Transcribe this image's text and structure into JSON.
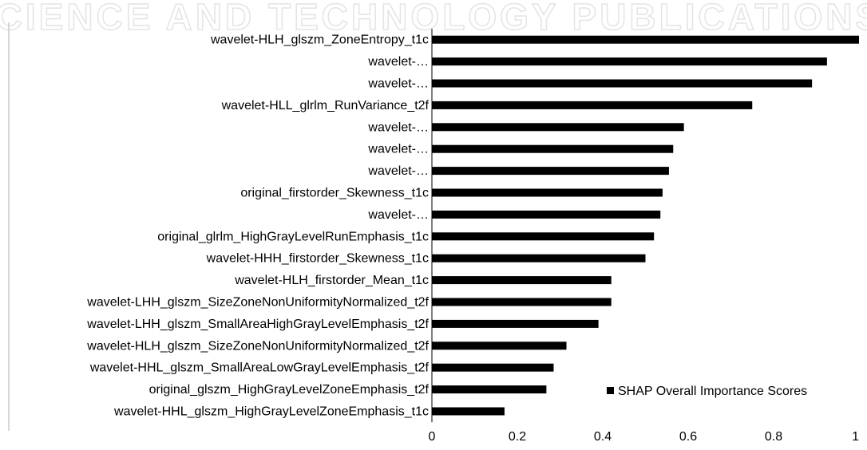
{
  "watermark": {
    "text": "SCIENCE AND TECHNOLOGY PUBLICATIONS"
  },
  "chart_data": {
    "type": "bar",
    "orientation": "horizontal",
    "categories": [
      "wavelet-HLH_glszm_ZoneEntropy_t1c",
      "wavelet-…",
      "wavelet-…",
      "wavelet-HLL_glrlm_RunVariance_t2f",
      "wavelet-…",
      "wavelet-…",
      "wavelet-…",
      "original_firstorder_Skewness_t1c",
      "wavelet-…",
      "original_glrlm_HighGrayLevelRunEmphasis_t1c",
      "wavelet-HHH_firstorder_Skewness_t1c",
      "wavelet-HLH_firstorder_Mean_t1c",
      "wavelet-LHH_glszm_SizeZoneNonUniformityNormalized_t2f",
      "wavelet-LHH_glszm_SmallAreaHighGrayLevelEmphasis_t2f",
      "wavelet-HLH_glszm_SizeZoneNonUniformityNormalized_t2f",
      "wavelet-HHL_glszm_SmallAreaLowGrayLevelEmphasis_t2f",
      "original_glszm_HighGrayLevelZoneEmphasis_t2f",
      "wavelet-HHL_glszm_HighGrayLevelZoneEmphasis_t1c"
    ],
    "series": [
      {
        "name": "SHAP Overall Importance Scores",
        "values": [
          1.0,
          0.925,
          0.89,
          0.75,
          0.59,
          0.565,
          0.555,
          0.54,
          0.535,
          0.52,
          0.5,
          0.42,
          0.42,
          0.39,
          0.315,
          0.285,
          0.268,
          0.17
        ],
        "color": "#000000"
      }
    ],
    "xlim": [
      0,
      1
    ],
    "xticks": [
      "0",
      "0.2",
      "0.4",
      "0.6",
      "0.8",
      "1"
    ],
    "grid": false,
    "legend_position": "bottom-right"
  }
}
